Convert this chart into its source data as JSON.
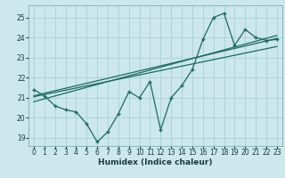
{
  "title": "",
  "xlabel": "Humidex (Indice chaleur)",
  "bg_color": "#cce8ec",
  "grid_color": "#aed4d8",
  "line_color": "#1a6b60",
  "xlim": [
    -0.5,
    23.5
  ],
  "ylim": [
    18.6,
    25.6
  ],
  "yticks": [
    19,
    20,
    21,
    22,
    23,
    24,
    25
  ],
  "xticks": [
    0,
    1,
    2,
    3,
    4,
    5,
    6,
    7,
    8,
    9,
    10,
    11,
    12,
    13,
    14,
    15,
    16,
    17,
    18,
    19,
    20,
    21,
    22,
    23
  ],
  "main_x": [
    0,
    1,
    2,
    3,
    4,
    5,
    6,
    7,
    8,
    9,
    10,
    11,
    12,
    13,
    14,
    15,
    16,
    17,
    18,
    19,
    20,
    21,
    22,
    23
  ],
  "main_y": [
    21.4,
    21.1,
    20.6,
    20.4,
    20.3,
    19.7,
    18.8,
    19.3,
    20.2,
    21.3,
    21.0,
    21.8,
    19.4,
    21.0,
    21.6,
    22.4,
    23.9,
    25.0,
    25.2,
    23.6,
    24.4,
    24.0,
    23.85,
    23.9
  ],
  "trend1_x": [
    0,
    23
  ],
  "trend1_y": [
    21.05,
    23.55
  ],
  "trend2_x": [
    0,
    23
  ],
  "trend2_y": [
    20.8,
    24.1
  ],
  "trend3_x": [
    0,
    23
  ],
  "trend3_y": [
    21.1,
    23.95
  ]
}
